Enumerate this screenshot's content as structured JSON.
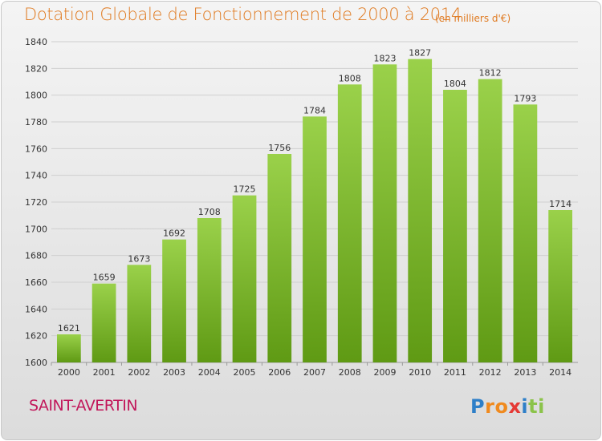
{
  "header": {
    "title": "Dotation Globale de Fonctionnement de 2000 à 2014",
    "subtitle": "(en milliers d'€)"
  },
  "footer": {
    "commune": "SAINT-AVERTIN",
    "logo_letters": [
      "P",
      "r",
      "o",
      "x",
      "i",
      "t",
      "i"
    ],
    "logo_colors": [
      "#2e7fc8",
      "#f08a1e",
      "#f08a1e",
      "#e53935",
      "#2e7fc8",
      "#8bc34a",
      "#8bc34a"
    ]
  },
  "colors": {
    "bar_light": "#9ad14a",
    "bar_dark": "#5f9a14",
    "grid": "#cfcfcf",
    "axis": "#999999",
    "text": "#333333"
  },
  "chart_data": {
    "type": "bar",
    "title": "Dotation Globale de Fonctionnement de 2000 à 2014",
    "subtitle": "(en milliers d'€)",
    "categories": [
      "2000",
      "2001",
      "2002",
      "2003",
      "2004",
      "2005",
      "2006",
      "2007",
      "2008",
      "2009",
      "2010",
      "2011",
      "2012",
      "2013",
      "2014"
    ],
    "values": [
      1621,
      1659,
      1673,
      1692,
      1708,
      1725,
      1756,
      1784,
      1808,
      1823,
      1827,
      1804,
      1812,
      1793,
      1714
    ],
    "ylim": [
      1600,
      1840
    ],
    "yticks": [
      1600,
      1620,
      1640,
      1660,
      1680,
      1700,
      1720,
      1740,
      1760,
      1780,
      1800,
      1820,
      1840
    ],
    "grid": true,
    "legend": "none",
    "xlabel": "",
    "ylabel": ""
  }
}
